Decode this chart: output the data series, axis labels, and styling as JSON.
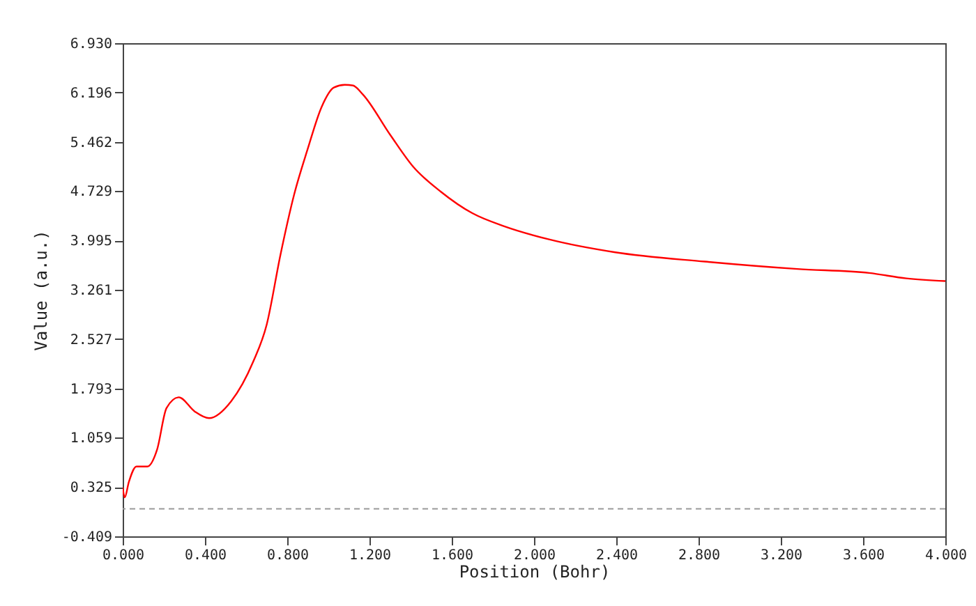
{
  "chart_data": {
    "type": "line",
    "xlabel": "Position (Bohr)",
    "ylabel": "Value (a.u.)",
    "xlim": [
      0,
      4
    ],
    "xticks": [
      {
        "value": 0,
        "label": "0.000"
      },
      {
        "value": 0.4,
        "label": "0.400"
      },
      {
        "value": 0.8,
        "label": "0.800"
      },
      {
        "value": 1.2,
        "label": "1.200"
      },
      {
        "value": 1.6,
        "label": "1.600"
      },
      {
        "value": 2,
        "label": "2.000"
      },
      {
        "value": 2.4,
        "label": "2.400"
      },
      {
        "value": 2.8,
        "label": "2.800"
      },
      {
        "value": 3.2,
        "label": "3.200"
      },
      {
        "value": 3.6,
        "label": "3.600"
      },
      {
        "value": 4,
        "label": "4.000"
      }
    ],
    "ylim": [
      -0.409,
      6.93
    ],
    "yticks": [
      -0.409,
      0.325,
      1.059,
      1.793,
      2.527,
      3.261,
      3.995,
      4.729,
      5.462,
      6.196,
      {
        "value": 6.93,
        "label": "6.930"
      }
    ],
    "grid": false,
    "line_style": "solid",
    "ref_lines": [
      {
        "axis": "y",
        "value": 0,
        "color": "#999999",
        "line_style": "dashed"
      }
    ],
    "series": [
      {
        "color": "#ff0000",
        "x": [
          0,
          0.01,
          0.03,
          0.067,
          0.12,
          0.167,
          0.213,
          0.273,
          0.35,
          0.42,
          0.527,
          0.633,
          0.7,
          0.767,
          0.833,
          0.9,
          0.967,
          1.027,
          1.08,
          1.12,
          1.167,
          1.3,
          1.413,
          1.547,
          1.7,
          1.86,
          2.073,
          2.39,
          2.83,
          3.28,
          3.63,
          3.81,
          4
        ],
        "values": [
          0.32,
          0.17,
          0.4,
          0.63,
          0.63,
          0.88,
          1.5,
          1.66,
          1.45,
          1.35,
          1.6,
          2.18,
          2.74,
          3.78,
          4.67,
          5.36,
          5.98,
          6.27,
          6.31,
          6.3,
          6.17,
          5.57,
          5.09,
          4.72,
          4.4,
          4.2,
          4.01,
          3.82,
          3.68,
          3.57,
          3.51,
          3.43,
          3.39
        ]
      }
    ]
  }
}
